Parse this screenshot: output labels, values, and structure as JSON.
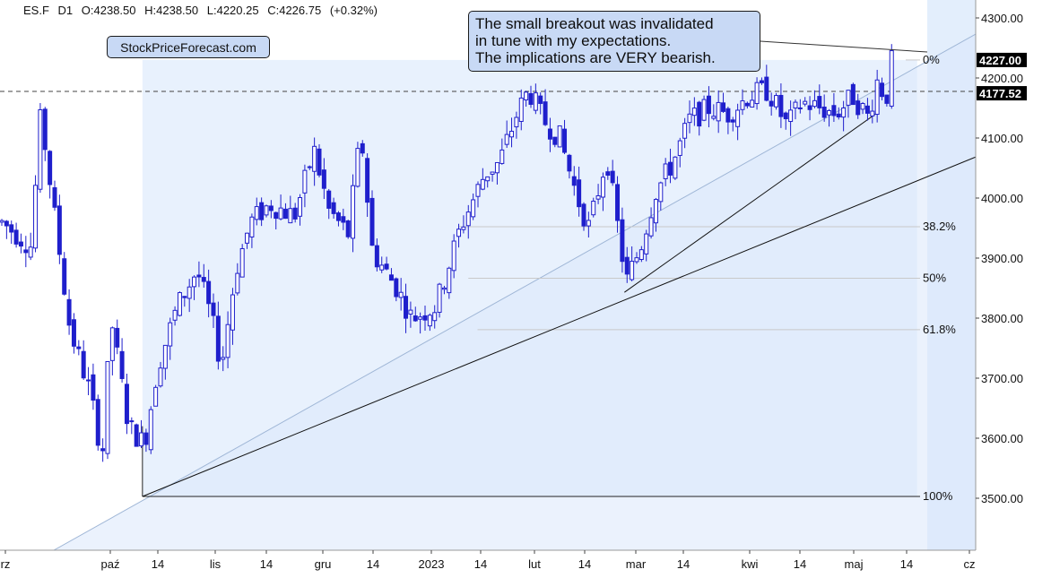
{
  "header": {
    "symbol": "ES.F",
    "interval": "D1",
    "open": "O:4238.50",
    "high": "H:4238.50",
    "low": "L:4220.25",
    "close": "C:4226.75",
    "change": "(+0.32%)"
  },
  "brand_label": "StockPriceForecast.com",
  "annotation": {
    "lines": [
      "The small breakout was invalidated",
      "in tune with my expectations.",
      "The implications are VERY bearish."
    ]
  },
  "colors": {
    "candle": "#1f1fcc",
    "band_fill": "#e8f1fd",
    "annotation_fill": "#c8d9f5",
    "price_badge": "#000000"
  },
  "chart_data": {
    "type": "candlestick",
    "y_axis": {
      "ticks": [
        "4300.00",
        "4200.00",
        "4100.00",
        "4000.00",
        "3900.00",
        "3800.00",
        "3700.00",
        "3600.00",
        "3500.00"
      ],
      "tick_values": [
        4300,
        4200,
        4100,
        4000,
        3900,
        3800,
        3700,
        3600,
        3500
      ],
      "ylim": [
        3420,
        4320
      ]
    },
    "x_axis": {
      "ticks": [
        "rz",
        "paź",
        "14",
        "lis",
        "14",
        "gru",
        "14",
        "2023",
        "14",
        "lut",
        "14",
        "mar",
        "14",
        "kwi",
        "14",
        "maj",
        "14",
        "cz"
      ]
    },
    "price_badges": [
      {
        "label": "4227.00",
        "value": 4227
      },
      {
        "label": "4177.52",
        "value": 4177.52
      }
    ],
    "fibonacci": {
      "low": 3503,
      "high": 4230,
      "levels": [
        {
          "label": "0%",
          "ratio": 0
        },
        {
          "label": "38.2%",
          "ratio": 0.382
        },
        {
          "label": "50%",
          "ratio": 0.5
        },
        {
          "label": "61.8%",
          "ratio": 0.618
        },
        {
          "label": "100%",
          "ratio": 1
        }
      ]
    },
    "horizontal_line_value": 4177.52,
    "trendlines": [
      {
        "from": [
          0.146,
          3503
        ],
        "to": [
          0.93,
          4050
        ]
      },
      {
        "from": [
          0.64,
          3843
        ],
        "to": [
          0.9,
          4143
        ]
      }
    ],
    "close_path": [
      [
        0.0,
        3960
      ],
      [
        0.03,
        3920
      ],
      [
        0.04,
        4140
      ],
      [
        0.055,
        3960
      ],
      [
        0.07,
        3780
      ],
      [
        0.09,
        3680
      ],
      [
        0.103,
        3570
      ],
      [
        0.112,
        3800
      ],
      [
        0.13,
        3620
      ],
      [
        0.146,
        3590
      ],
      [
        0.16,
        3720
      ],
      [
        0.18,
        3820
      ],
      [
        0.2,
        3880
      ],
      [
        0.215,
        3800
      ],
      [
        0.225,
        3720
      ],
      [
        0.24,
        3880
      ],
      [
        0.255,
        3960
      ],
      [
        0.275,
        3990
      ],
      [
        0.3,
        3970
      ],
      [
        0.32,
        4080
      ],
      [
        0.335,
        3980
      ],
      [
        0.355,
        3940
      ],
      [
        0.368,
        4110
      ],
      [
        0.38,
        3910
      ],
      [
        0.405,
        3850
      ],
      [
        0.42,
        3800
      ],
      [
        0.445,
        3820
      ],
      [
        0.47,
        3950
      ],
      [
        0.495,
        4040
      ],
      [
        0.51,
        4060
      ],
      [
        0.528,
        4140
      ],
      [
        0.54,
        4180
      ],
      [
        0.555,
        4130
      ],
      [
        0.572,
        4100
      ],
      [
        0.59,
        4000
      ],
      [
        0.602,
        3950
      ],
      [
        0.62,
        4070
      ],
      [
        0.64,
        3860
      ],
      [
        0.655,
        3920
      ],
      [
        0.67,
        4010
      ],
      [
        0.688,
        4060
      ],
      [
        0.705,
        4130
      ],
      [
        0.725,
        4150
      ],
      [
        0.745,
        4140
      ],
      [
        0.765,
        4170
      ],
      [
        0.785,
        4180
      ],
      [
        0.805,
        4120
      ],
      [
        0.82,
        4160
      ],
      [
        0.838,
        4150
      ],
      [
        0.855,
        4140
      ],
      [
        0.872,
        4170
      ],
      [
        0.888,
        4135
      ],
      [
        0.898,
        4200
      ],
      [
        0.906,
        4160
      ],
      [
        0.912,
        4227
      ]
    ]
  }
}
